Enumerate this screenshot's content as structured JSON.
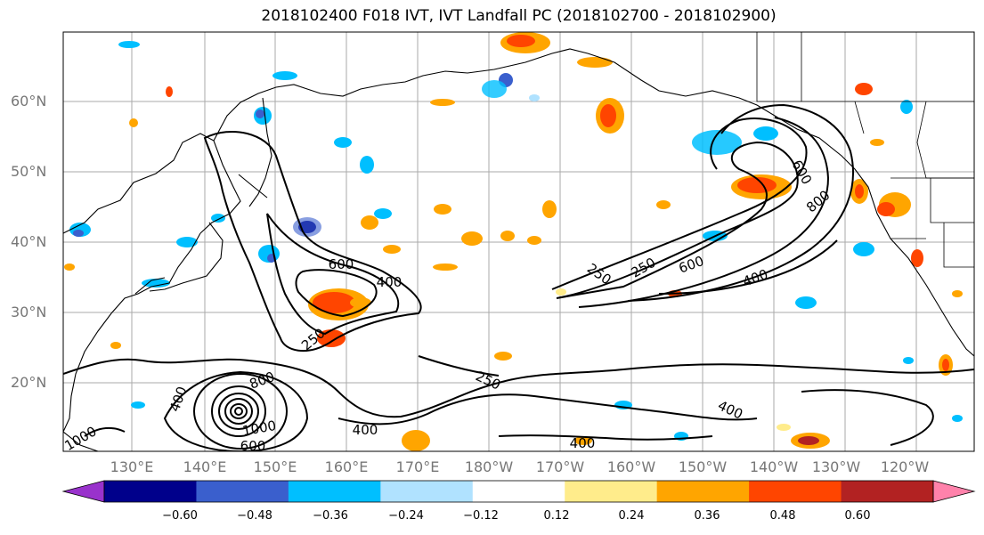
{
  "title": "2018102400 F018 IVT, IVT Landfall PC (2018102700 - 2018102900)",
  "lat_labels": [
    "60°N",
    "50°N",
    "40°N",
    "30°N",
    "20°N"
  ],
  "lon_labels": [
    "130°E",
    "140°E",
    "150°E",
    "160°E",
    "170°E",
    "180°W",
    "170°W",
    "160°W",
    "150°W",
    "140°W",
    "130°W",
    "120°W"
  ],
  "colorbar": {
    "ticks": [
      "−0.60",
      "−0.48",
      "−0.36",
      "−0.24",
      "−0.12",
      "0.12",
      "0.24",
      "0.36",
      "0.48",
      "0.60"
    ],
    "colors": [
      "#9932cc",
      "#00008b",
      "#3a5fcd",
      "#00bfff",
      "#b0e2ff",
      "#ffffff",
      "#ffec8b",
      "#ffa500",
      "#ff4500",
      "#b22222",
      "#ff82ab"
    ]
  },
  "contour_labels": [
    "600",
    "400",
    "250",
    "250",
    "250",
    "600",
    "400",
    "600",
    "800",
    "250",
    "400",
    "800",
    "1000",
    "600",
    "400",
    "400",
    "400",
    "1000"
  ]
}
